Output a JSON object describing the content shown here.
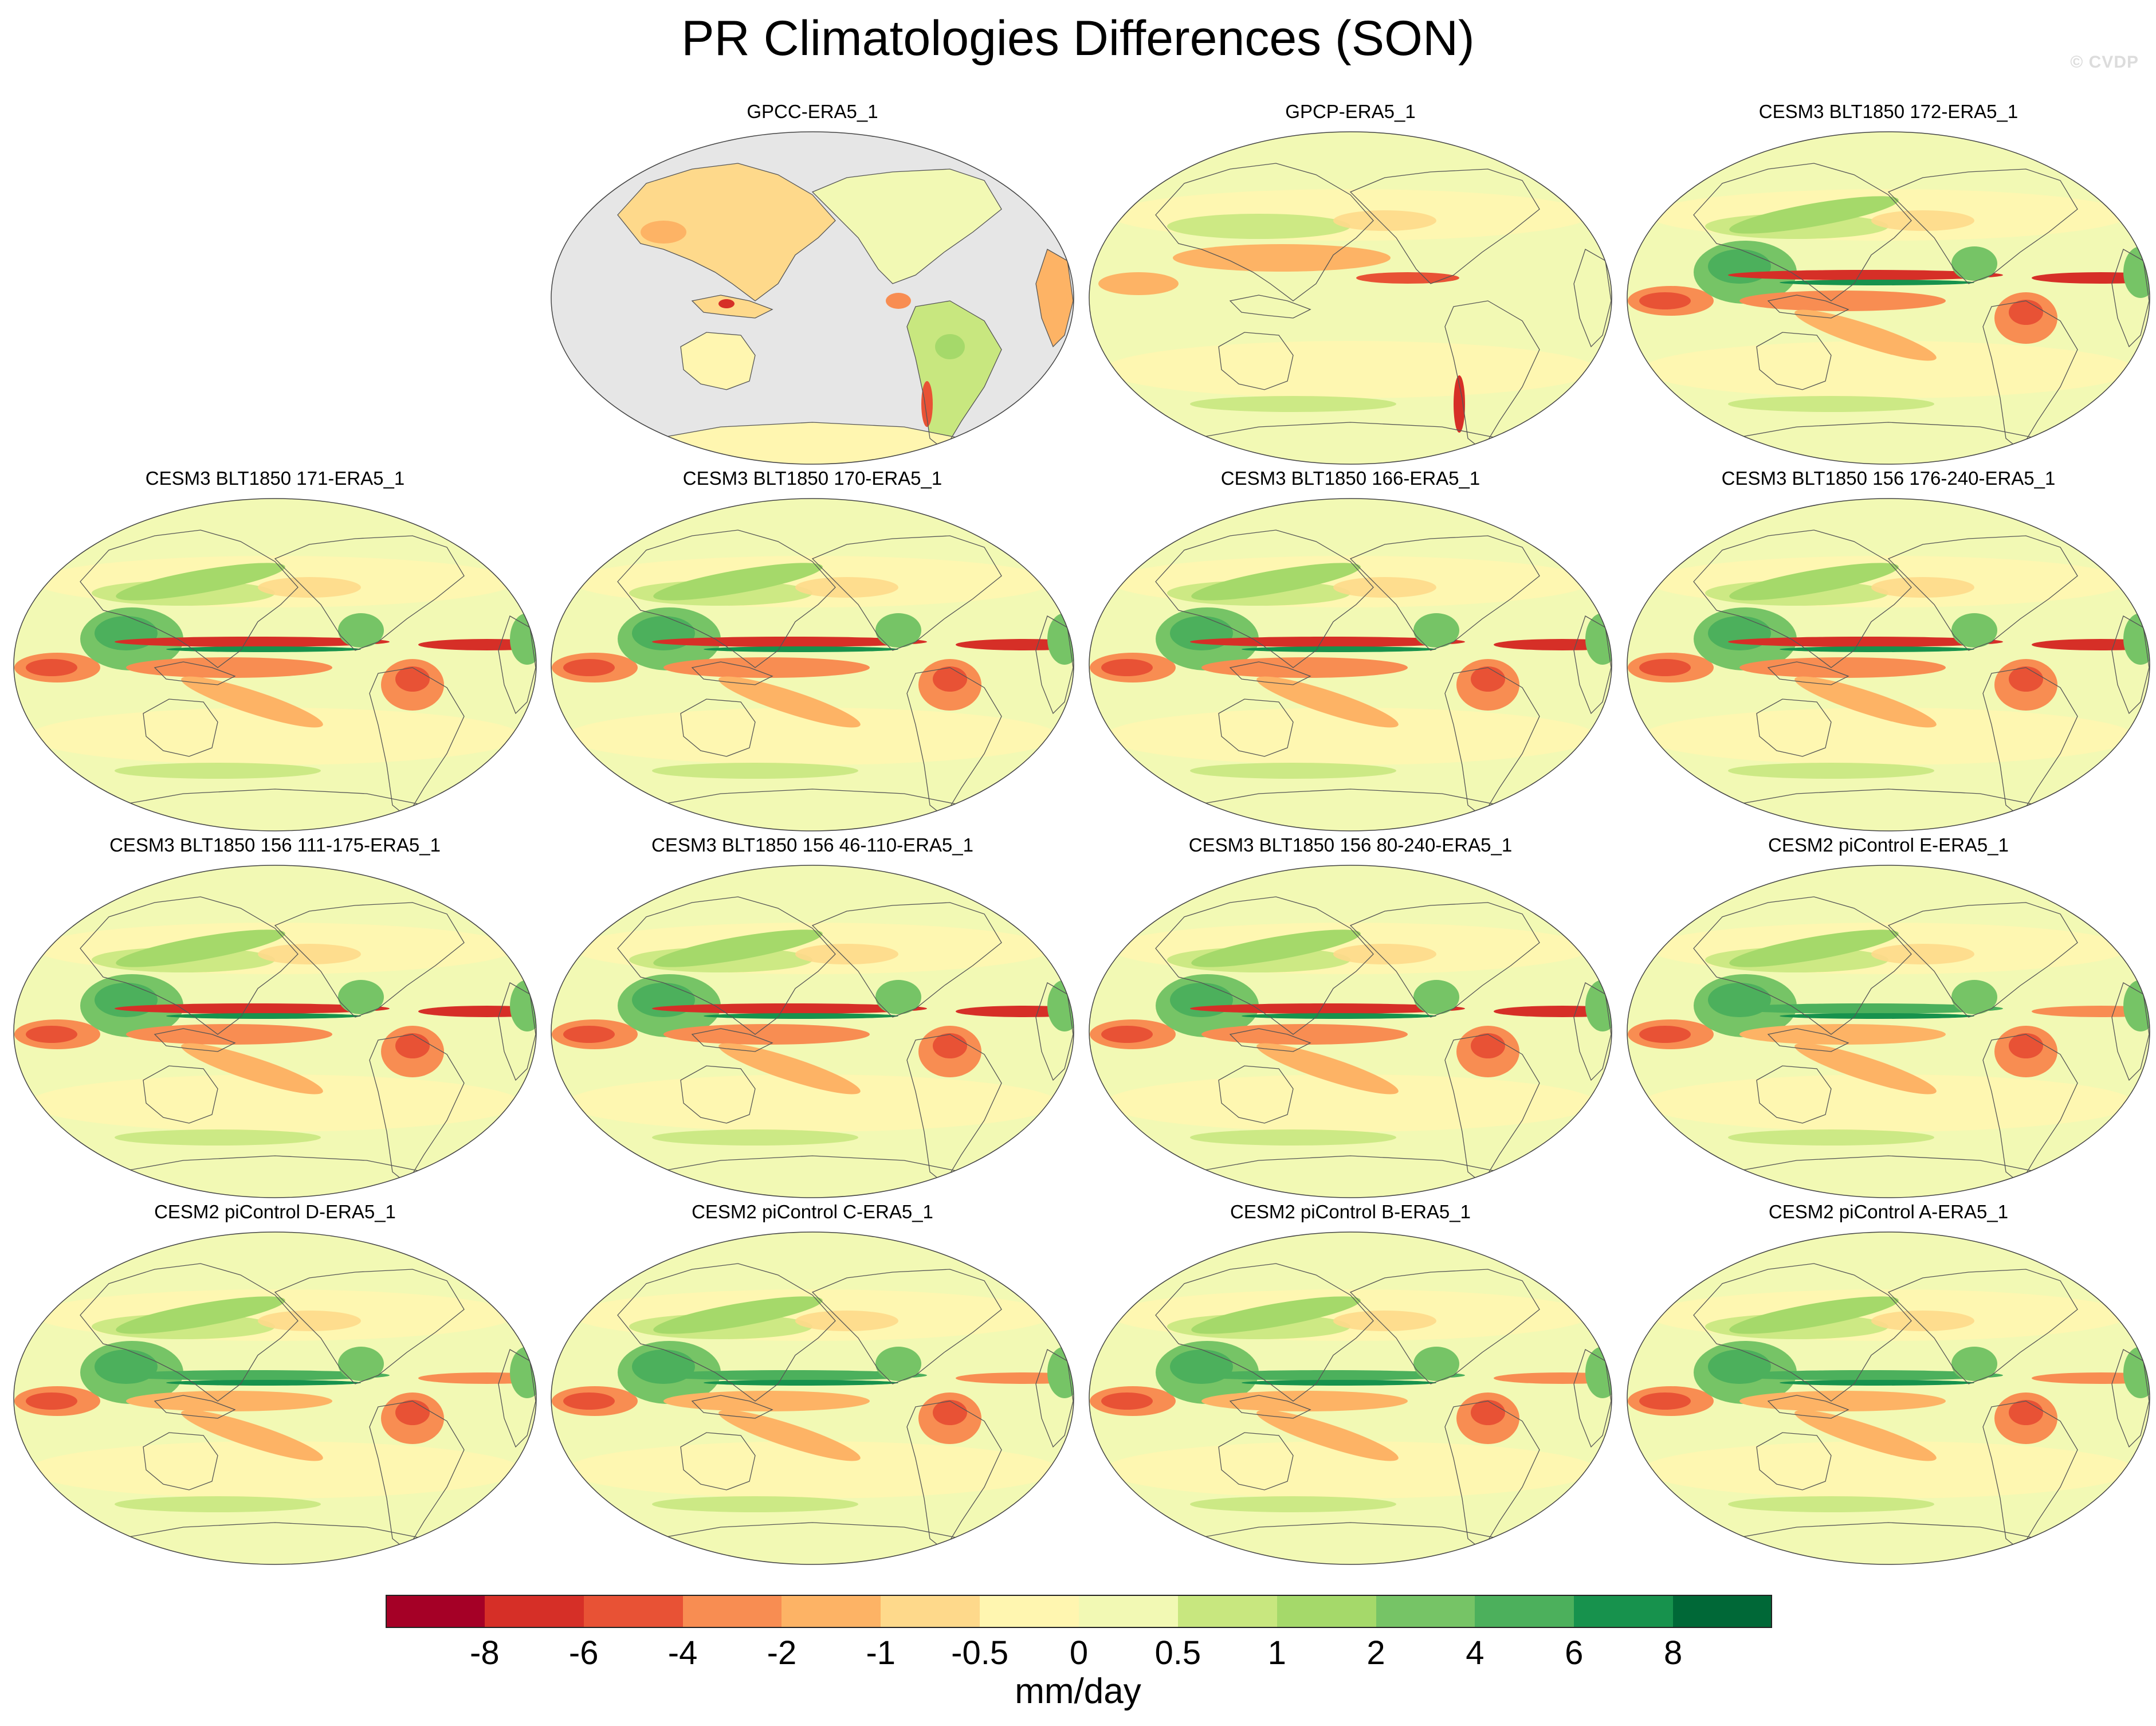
{
  "figure": {
    "title": "PR Climatologies Differences (SON)",
    "watermark": "© CVDP"
  },
  "panels": [
    {
      "title": "GPCC-ERA5_1",
      "land_only": true
    },
    {
      "title": "GPCP-ERA5_1",
      "land_only": false
    },
    {
      "title": "CESM3 BLT1850 172-ERA5_1",
      "land_only": false
    },
    {
      "title": "CESM3 BLT1850 171-ERA5_1",
      "land_only": false
    },
    {
      "title": "CESM3 BLT1850 170-ERA5_1",
      "land_only": false
    },
    {
      "title": "CESM3 BLT1850 166-ERA5_1",
      "land_only": false
    },
    {
      "title": "CESM3 BLT1850 156 176-240-ERA5_1",
      "land_only": false
    },
    {
      "title": "CESM3 BLT1850 156 111-175-ERA5_1",
      "land_only": false
    },
    {
      "title": "CESM3 BLT1850 156 46-110-ERA5_1",
      "land_only": false
    },
    {
      "title": "CESM3 BLT1850 156 80-240-ERA5_1",
      "land_only": false
    },
    {
      "title": "CESM2 piControl E-ERA5_1",
      "land_only": false
    },
    {
      "title": "CESM2 piControl D-ERA5_1",
      "land_only": false
    },
    {
      "title": "CESM2 piControl C-ERA5_1",
      "land_only": false
    },
    {
      "title": "CESM2 piControl B-ERA5_1",
      "land_only": false
    },
    {
      "title": "CESM2 piControl A-ERA5_1",
      "land_only": false
    }
  ],
  "colorbar": {
    "units": "mm/day",
    "tick_labels": [
      "-8",
      "-6",
      "-4",
      "-2",
      "-1",
      "-0.5",
      "0",
      "0.5",
      "1",
      "2",
      "4",
      "6",
      "8"
    ],
    "colors": [
      "#a50026",
      "#d62f27",
      "#e85235",
      "#f88d52",
      "#fdb365",
      "#fed98b",
      "#fff6b0",
      "#f2f9b4",
      "#c8e77f",
      "#a5d96a",
      "#76c466",
      "#4cb05c",
      "#17924d",
      "#006837"
    ]
  }
}
